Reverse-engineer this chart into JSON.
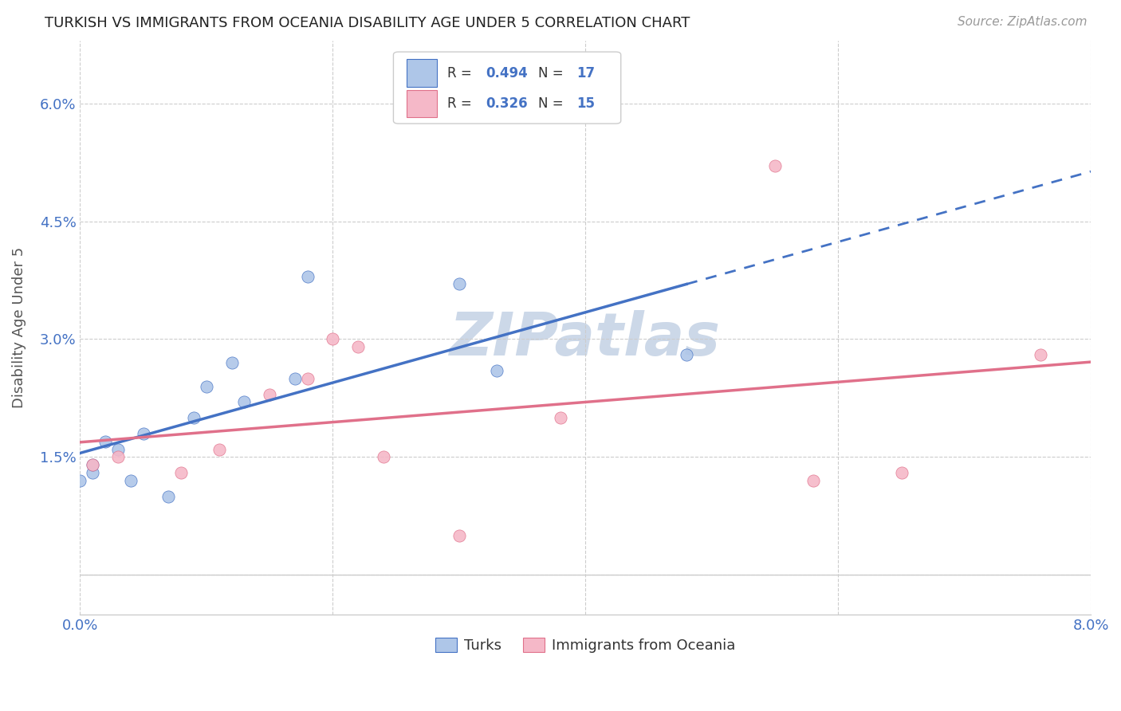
{
  "title": "TURKISH VS IMMIGRANTS FROM OCEANIA DISABILITY AGE UNDER 5 CORRELATION CHART",
  "source": "Source: ZipAtlas.com",
  "ylabel": "Disability Age Under 5",
  "xlim": [
    0.0,
    0.08
  ],
  "ylim": [
    -0.005,
    0.068
  ],
  "ytick_vals": [
    0.0,
    0.015,
    0.03,
    0.045,
    0.06
  ],
  "ytick_labels": [
    "",
    "1.5%",
    "3.0%",
    "4.5%",
    "6.0%"
  ],
  "xtick_vals": [
    0.0,
    0.02,
    0.04,
    0.06,
    0.08
  ],
  "xtick_labels": [
    "0.0%",
    "",
    "",
    "",
    "8.0%"
  ],
  "turks_x": [
    0.0,
    0.001,
    0.001,
    0.002,
    0.003,
    0.004,
    0.005,
    0.007,
    0.009,
    0.01,
    0.012,
    0.013,
    0.017,
    0.018,
    0.03,
    0.033,
    0.048
  ],
  "turks_y": [
    0.012,
    0.013,
    0.014,
    0.017,
    0.016,
    0.012,
    0.018,
    0.01,
    0.02,
    0.024,
    0.027,
    0.022,
    0.025,
    0.038,
    0.037,
    0.026,
    0.028
  ],
  "oceania_x": [
    0.001,
    0.003,
    0.008,
    0.011,
    0.015,
    0.018,
    0.02,
    0.022,
    0.024,
    0.03,
    0.038,
    0.055,
    0.058,
    0.065,
    0.076
  ],
  "oceania_y": [
    0.014,
    0.015,
    0.013,
    0.016,
    0.023,
    0.025,
    0.03,
    0.029,
    0.015,
    0.005,
    0.02,
    0.052,
    0.012,
    0.013,
    0.028
  ],
  "turks_color": "#aec6e8",
  "oceania_color": "#f5b8c8",
  "turks_line_color": "#4472c4",
  "oceania_line_color": "#e0708a",
  "turks_R": 0.494,
  "turks_N": 17,
  "oceania_R": 0.326,
  "oceania_N": 15,
  "background_color": "#ffffff",
  "grid_color": "#cccccc",
  "title_color": "#222222",
  "source_color": "#999999",
  "watermark_color": "#ccd8e8",
  "legend_label_turks": "Turks",
  "legend_label_oceania": "Immigrants from Oceania",
  "marker_size": 120
}
